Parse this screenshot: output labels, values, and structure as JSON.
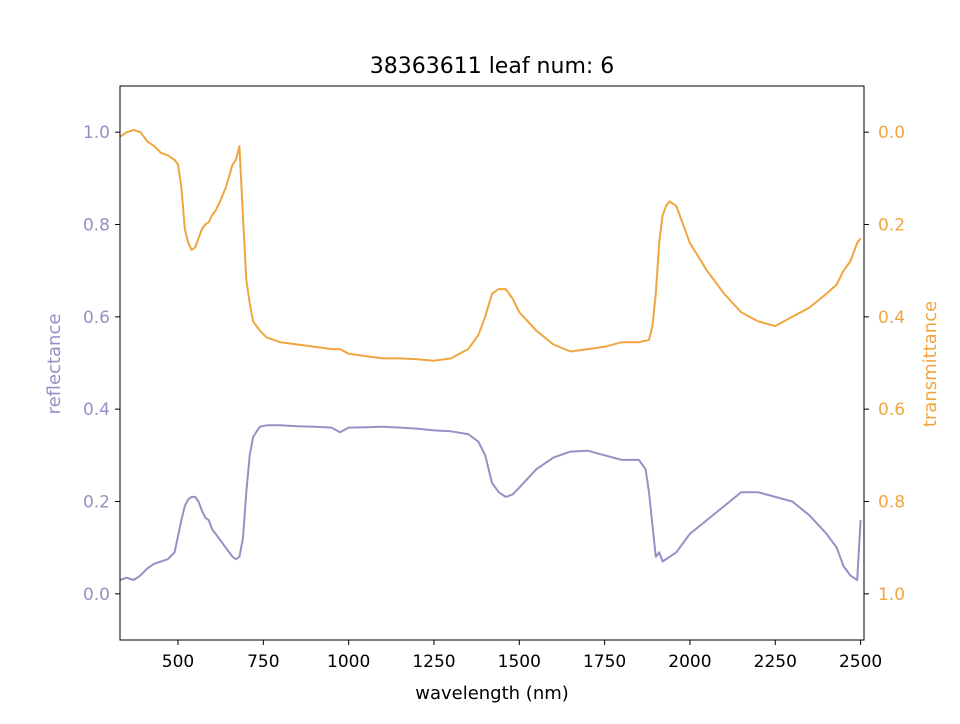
{
  "chart_data": {
    "type": "line",
    "title": "38363611 leaf num: 6",
    "xlabel": "wavelength (nm)",
    "ylabel_left": "reflectance",
    "ylabel_right": "transmittance",
    "xlim": [
      330,
      2510
    ],
    "ylim_left": [
      -0.1,
      1.1
    ],
    "ylim_right": [
      1.1,
      -0.1
    ],
    "x_ticks": [
      "500",
      "750",
      "1000",
      "1250",
      "1500",
      "1750",
      "2000",
      "2250",
      "2500"
    ],
    "y_ticks_left": [
      "0.0",
      "0.2",
      "0.4",
      "0.6",
      "0.8",
      "1.0"
    ],
    "y_ticks_right": [
      "0.0",
      "0.2",
      "0.4",
      "0.6",
      "0.8",
      "1.0"
    ],
    "grid": false,
    "legend": false,
    "colors": {
      "reflectance": "#9591c4",
      "transmittance": "#f0a640"
    },
    "series": [
      {
        "axis": "left",
        "x": [
          330,
          350,
          370,
          390,
          410,
          430,
          450,
          470,
          490,
          510,
          520,
          530,
          540,
          550,
          560,
          570,
          580,
          590,
          600,
          620,
          640,
          660,
          670,
          680,
          690,
          700,
          710,
          720,
          740,
          760,
          800,
          850,
          900,
          950,
          975,
          1000,
          1050,
          1100,
          1150,
          1200,
          1250,
          1300,
          1350,
          1380,
          1400,
          1420,
          1440,
          1460,
          1480,
          1500,
          1550,
          1600,
          1650,
          1700,
          1750,
          1800,
          1850,
          1870,
          1880,
          1890,
          1900,
          1910,
          1920,
          1940,
          1960,
          1980,
          2000,
          2050,
          2100,
          2150,
          2200,
          2250,
          2300,
          2350,
          2400,
          2430,
          2450,
          2470,
          2490,
          2500
        ],
        "y": [
          0.03,
          0.035,
          0.03,
          0.04,
          0.055,
          0.065,
          0.07,
          0.075,
          0.09,
          0.16,
          0.19,
          0.205,
          0.21,
          0.21,
          0.2,
          0.18,
          0.165,
          0.16,
          0.14,
          0.12,
          0.1,
          0.08,
          0.075,
          0.08,
          0.12,
          0.22,
          0.3,
          0.34,
          0.362,
          0.365,
          0.365,
          0.363,
          0.362,
          0.36,
          0.35,
          0.36,
          0.361,
          0.362,
          0.36,
          0.358,
          0.354,
          0.352,
          0.346,
          0.33,
          0.3,
          0.24,
          0.22,
          0.21,
          0.215,
          0.23,
          0.27,
          0.295,
          0.308,
          0.31,
          0.3,
          0.29,
          0.29,
          0.27,
          0.22,
          0.15,
          0.08,
          0.09,
          0.07,
          0.08,
          0.09,
          0.11,
          0.13,
          0.16,
          0.19,
          0.22,
          0.22,
          0.21,
          0.2,
          0.17,
          0.13,
          0.1,
          0.06,
          0.04,
          0.03,
          0.16
        ]
      },
      {
        "axis": "right",
        "x": [
          330,
          350,
          370,
          390,
          410,
          430,
          450,
          470,
          490,
          500,
          510,
          520,
          530,
          540,
          550,
          560,
          570,
          580,
          590,
          600,
          610,
          620,
          640,
          660,
          670,
          680,
          690,
          700,
          710,
          720,
          740,
          760,
          800,
          850,
          900,
          950,
          975,
          1000,
          1050,
          1100,
          1150,
          1200,
          1250,
          1300,
          1350,
          1380,
          1400,
          1420,
          1440,
          1460,
          1480,
          1500,
          1550,
          1600,
          1650,
          1700,
          1750,
          1800,
          1850,
          1880,
          1890,
          1900,
          1910,
          1920,
          1930,
          1940,
          1960,
          1980,
          2000,
          2050,
          2100,
          2150,
          2200,
          2250,
          2300,
          2350,
          2400,
          2430,
          2450,
          2470,
          2490,
          2500
        ],
        "y": [
          0.01,
          0.0,
          -0.005,
          0.0,
          0.02,
          0.03,
          0.045,
          0.05,
          0.06,
          0.07,
          0.12,
          0.21,
          0.24,
          0.255,
          0.25,
          0.23,
          0.21,
          0.2,
          0.195,
          0.18,
          0.17,
          0.155,
          0.12,
          0.07,
          0.06,
          0.03,
          0.18,
          0.32,
          0.37,
          0.41,
          0.43,
          0.445,
          0.455,
          0.46,
          0.465,
          0.47,
          0.47,
          0.48,
          0.485,
          0.49,
          0.49,
          0.492,
          0.495,
          0.49,
          0.47,
          0.44,
          0.4,
          0.35,
          0.34,
          0.34,
          0.36,
          0.39,
          0.43,
          0.46,
          0.475,
          0.47,
          0.465,
          0.455,
          0.455,
          0.45,
          0.42,
          0.35,
          0.24,
          0.18,
          0.16,
          0.15,
          0.16,
          0.2,
          0.24,
          0.3,
          0.35,
          0.39,
          0.41,
          0.42,
          0.4,
          0.38,
          0.35,
          0.33,
          0.3,
          0.28,
          0.24,
          0.23
        ]
      }
    ]
  }
}
